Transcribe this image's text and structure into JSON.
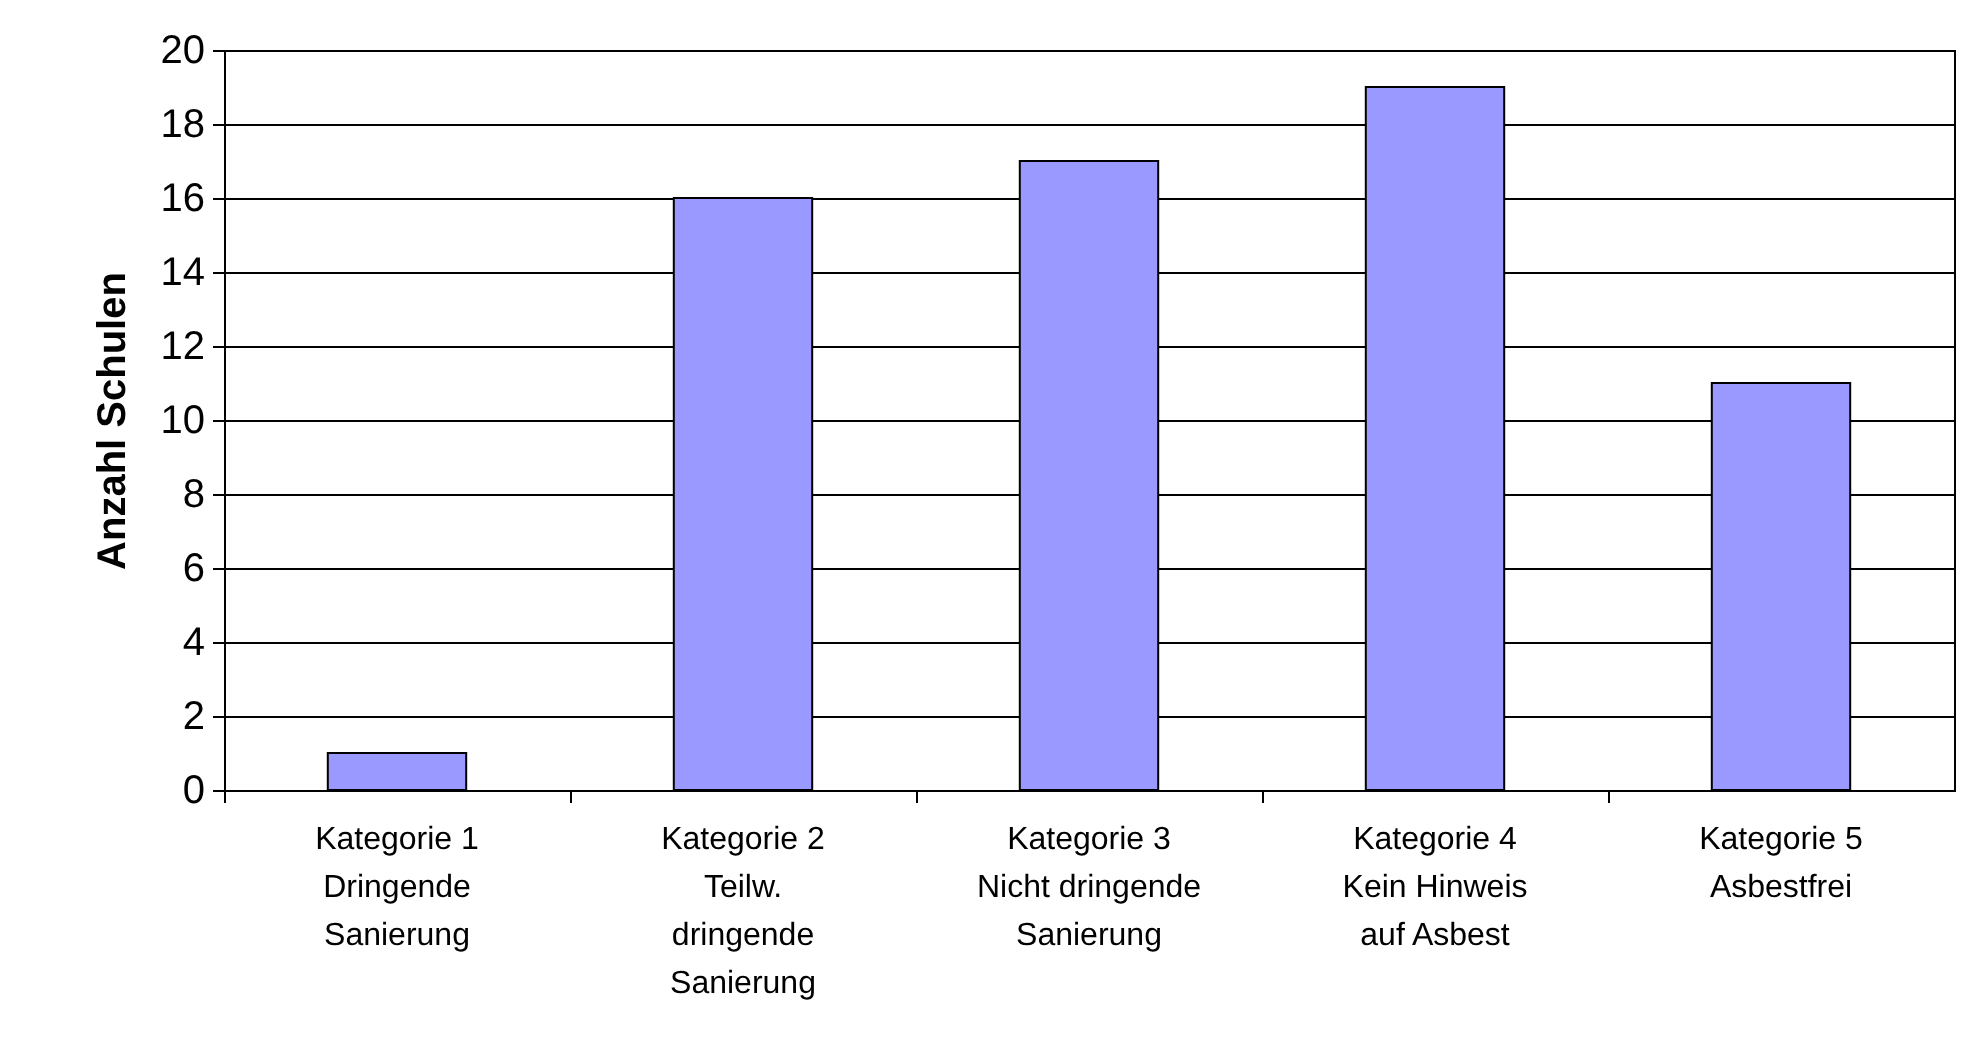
{
  "chart_data": {
    "type": "bar",
    "ylabel": "Anzahl Schulen",
    "categories": [
      "Kategorie 1\nDringende\nSanierung",
      "Kategorie 2\nTeilw.\ndringende\nSanierung",
      "Kategorie 3\nNicht dringende\nSanierung",
      "Kategorie 4\nKein Hinweis\nauf  Asbest",
      "Kategorie 5\nAsbestfrei"
    ],
    "values": [
      1,
      16,
      17,
      19,
      11
    ],
    "color": "#9999ff",
    "ylim": [
      0,
      20
    ],
    "yticks": [
      0,
      2,
      4,
      6,
      8,
      10,
      12,
      14,
      16,
      18,
      20
    ],
    "grid": "y"
  }
}
